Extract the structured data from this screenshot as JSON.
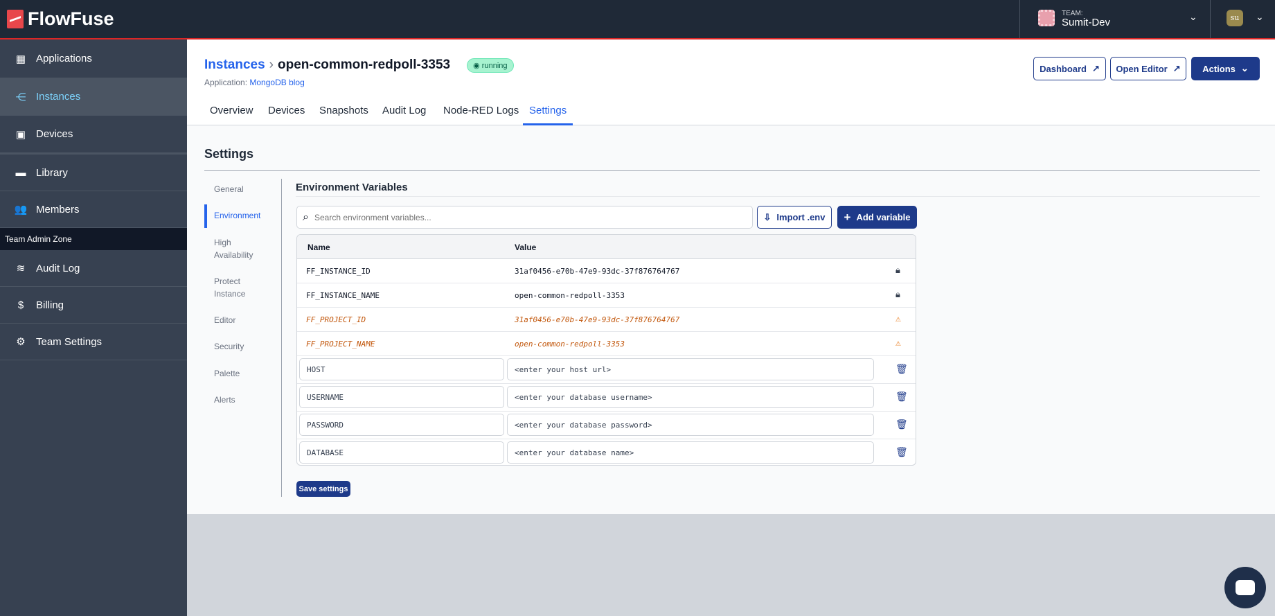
{
  "header": {
    "brand": "FlowFuse",
    "team_label": "TEAM:",
    "team_name": "Sumit-Dev",
    "avatar": "su"
  },
  "sidebar": {
    "items": [
      {
        "label": "Applications",
        "icon": "layout-icon"
      },
      {
        "label": "Instances",
        "icon": "instances-icon",
        "selected": true
      },
      {
        "label": "Devices",
        "icon": "chip-icon"
      },
      {
        "label": "Library",
        "icon": "folder-icon"
      },
      {
        "label": "Members",
        "icon": "users-icon"
      }
    ],
    "zone_label": "Team Admin Zone",
    "admin_items": [
      {
        "label": "Audit Log",
        "icon": "database-icon"
      },
      {
        "label": "Billing",
        "icon": "dollar-icon"
      },
      {
        "label": "Team Settings",
        "icon": "gear-icon"
      }
    ]
  },
  "page": {
    "breadcrumb_root": "Instances",
    "instance_name": "open-common-redpoll-3353",
    "status": "running",
    "app_prefix": "Application:",
    "app_name": "MongoDB blog",
    "tabs": [
      "Overview",
      "Devices",
      "Snapshots",
      "Audit Log",
      "Node-RED Logs",
      "Settings"
    ],
    "active_tab": "Settings",
    "buttons": {
      "dashboard": "Dashboard",
      "open_editor": "Open Editor",
      "actions": "Actions"
    }
  },
  "settings": {
    "title": "Settings",
    "nav": [
      "General",
      "Environment",
      "High Availability",
      "Protect Instance",
      "Editor",
      "Security",
      "Palette",
      "Alerts"
    ],
    "active_nav": "Environment",
    "env": {
      "title": "Environment Variables",
      "search_placeholder": "Search environment variables...",
      "import_label": "Import .env",
      "add_label": "Add variable",
      "col_name": "Name",
      "col_value": "Value",
      "readonly": [
        {
          "name": "FF_INSTANCE_ID",
          "value": "31af0456-e70b-47e9-93dc-37f876764767",
          "icon": "lock-icon"
        },
        {
          "name": "FF_INSTANCE_NAME",
          "value": "open-common-redpoll-3353",
          "icon": "lock-icon"
        },
        {
          "name": "FF_PROJECT_ID",
          "value": "31af0456-e70b-47e9-93dc-37f876764767",
          "icon": "warning-icon"
        },
        {
          "name": "FF_PROJECT_NAME",
          "value": "open-common-redpoll-3353",
          "icon": "warning-icon"
        }
      ],
      "editable": [
        {
          "name": "HOST",
          "value": "<enter your host url>"
        },
        {
          "name": "USERNAME",
          "value": "<enter your database username>"
        },
        {
          "name": "PASSWORD",
          "value": "<enter your database password>"
        },
        {
          "name": "DATABASE",
          "value": "<enter your database name>"
        }
      ]
    },
    "save_label": "Save settings"
  },
  "colors": {
    "accent": "#2563eb",
    "primary": "#1e3a8a",
    "header": "#1f2937",
    "sidebar": "#374151",
    "warning": "#c2570c"
  }
}
